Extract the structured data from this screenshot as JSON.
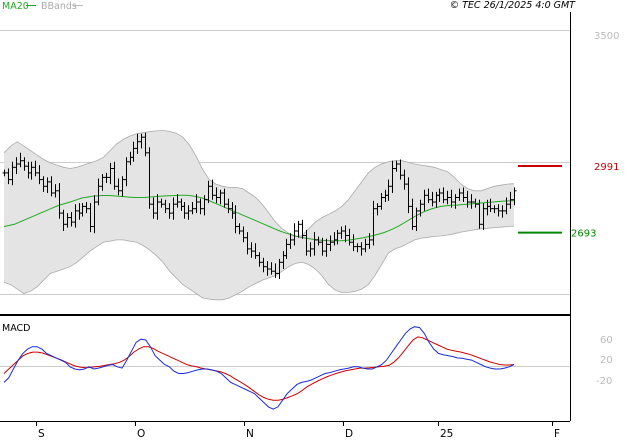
{
  "header": {
    "legend": [
      {
        "label": "MA20",
        "color": "#33aa33"
      },
      {
        "label": "BBands",
        "color": "#aaaaaa"
      }
    ],
    "copyright": "© TEC 26/1/2025 4:0 GMT"
  },
  "colors": {
    "price_bar": "#000000",
    "ma20": "#22aa22",
    "bbands_fill": "#e4e4e4",
    "bbands_line": "#aaaaaa",
    "resistance": "#cc0000",
    "support": "#008800",
    "macd": "#1a2bd6",
    "signal": "#cc0000",
    "grid": "#cccccc",
    "frame": "#000000"
  },
  "chart_data": [
    {
      "type": "ohlc",
      "yaxis_ticks": [
        "3500"
      ],
      "ylim": [
        2400,
        3600
      ],
      "levels": [
        {
          "name": "resistance",
          "label": "2991",
          "value": 2991
        },
        {
          "name": "support",
          "label": "2693",
          "value": 2693
        }
      ],
      "x_labels": [
        "S",
        "O",
        "N",
        "D",
        "25",
        "F"
      ],
      "close": [
        2960,
        2930,
        2985,
        3000,
        3015,
        2990,
        2960,
        2985,
        2960,
        2930,
        2900,
        2920,
        2870,
        2880,
        2780,
        2730,
        2760,
        2740,
        2790,
        2780,
        2810,
        2800,
        2720,
        2830,
        2900,
        2940,
        2940,
        2980,
        2900,
        2880,
        2930,
        3010,
        3030,
        3070,
        3100,
        3120,
        3050,
        2820,
        2780,
        2830,
        2820,
        2800,
        2780,
        2820,
        2830,
        2810,
        2780,
        2790,
        2800,
        2830,
        2800,
        2840,
        2900,
        2860,
        2850,
        2870,
        2820,
        2800,
        2780,
        2720,
        2700,
        2670,
        2620,
        2610,
        2590,
        2560,
        2540,
        2530,
        2520,
        2510,
        2560,
        2590,
        2640,
        2660,
        2700,
        2730,
        2680,
        2610,
        2620,
        2660,
        2650,
        2610,
        2640,
        2650,
        2660,
        2690,
        2700,
        2680,
        2650,
        2630,
        2630,
        2620,
        2640,
        2660,
        2800,
        2810,
        2850,
        2860,
        2900,
        2980,
        3000,
        2950,
        2910,
        2810,
        2720,
        2790,
        2820,
        2860,
        2840,
        2830,
        2860,
        2870,
        2840,
        2850,
        2830,
        2850,
        2870,
        2850,
        2830,
        2830,
        2820,
        2730,
        2800,
        2810,
        2800,
        2800,
        2790,
        2790,
        2820,
        2840,
        2880
      ],
      "ma20": [
        2720,
        2725,
        2730,
        2740,
        2750,
        2760,
        2770,
        2780,
        2790,
        2800,
        2810,
        2818,
        2825,
        2832,
        2840,
        2848,
        2852,
        2856,
        2858,
        2859,
        2859,
        2858,
        2856,
        2854,
        2852,
        2850,
        2850,
        2850,
        2852,
        2854,
        2856,
        2857,
        2858,
        2859,
        2860,
        2860,
        2858,
        2854,
        2848,
        2840,
        2830,
        2820,
        2810,
        2800,
        2790,
        2780,
        2770,
        2760,
        2750,
        2740,
        2730,
        2720,
        2710,
        2700,
        2692,
        2685,
        2678,
        2672,
        2668,
        2664,
        2661,
        2659,
        2657,
        2656,
        2656,
        2657,
        2659,
        2662,
        2666,
        2670,
        2675,
        2680,
        2686,
        2693,
        2702,
        2712,
        2724,
        2738,
        2752,
        2766,
        2778,
        2789,
        2798,
        2805,
        2810,
        2813,
        2815,
        2816,
        2818,
        2820,
        2822,
        2824,
        2826,
        2828,
        2830,
        2832,
        2834,
        2835,
        2836
      ],
      "bb_upper": [
        3050,
        3080,
        3100,
        3080,
        3060,
        3040,
        3020,
        3005,
        2995,
        2985,
        2980,
        2985,
        2995,
        3005,
        3015,
        3030,
        3060,
        3090,
        3110,
        3125,
        3135,
        3140,
        3145,
        3148,
        3150,
        3146,
        3138,
        3120,
        3085,
        3035,
        2975,
        2930,
        2910,
        2900,
        2895,
        2895,
        2890,
        2870,
        2850,
        2820,
        2780,
        2740,
        2710,
        2690,
        2675,
        2680,
        2710,
        2740,
        2760,
        2775,
        2790,
        2810,
        2840,
        2880,
        2920,
        2960,
        2985,
        3000,
        3010,
        3015,
        3015,
        3008,
        3000,
        2995,
        2990,
        2985,
        2975,
        2965,
        2940,
        2910,
        2890,
        2880,
        2880,
        2890,
        2900,
        2905,
        2910,
        2912
      ],
      "bb_lower": [
        2470,
        2460,
        2440,
        2420,
        2430,
        2450,
        2480,
        2510,
        2520,
        2530,
        2540,
        2560,
        2585,
        2610,
        2630,
        2650,
        2655,
        2660,
        2660,
        2655,
        2650,
        2635,
        2615,
        2590,
        2560,
        2520,
        2490,
        2460,
        2440,
        2420,
        2400,
        2395,
        2392,
        2392,
        2400,
        2415,
        2430,
        2450,
        2465,
        2480,
        2490,
        2500,
        2520,
        2540,
        2555,
        2560,
        2550,
        2530,
        2500,
        2460,
        2435,
        2425,
        2425,
        2430,
        2440,
        2460,
        2500,
        2550,
        2600,
        2620,
        2630,
        2645,
        2660,
        2668,
        2672,
        2676,
        2678,
        2682,
        2688,
        2695,
        2700,
        2705,
        2710,
        2712,
        2715,
        2717,
        2720,
        2722
      ]
    },
    {
      "type": "line",
      "title": "MACD",
      "yaxis_ticks": [
        "60",
        "20",
        "-20"
      ],
      "ylim": [
        -120,
        100
      ],
      "series": [
        {
          "key": "macd",
          "values": [
            -40,
            -30,
            -10,
            10,
            25,
            35,
            40,
            40,
            35,
            25,
            20,
            15,
            10,
            5,
            -5,
            -10,
            -12,
            -10,
            -5,
            -10,
            -8,
            -5,
            -2,
            0,
            -5,
            -8,
            10,
            30,
            50,
            57,
            55,
            40,
            20,
            10,
            0,
            -5,
            -15,
            -20,
            -20,
            -18,
            -15,
            -12,
            -10,
            -10,
            -12,
            -15,
            -20,
            -30,
            -40,
            -45,
            -50,
            -55,
            -60,
            -65,
            -75,
            -85,
            -95,
            -100,
            -95,
            -80,
            -65,
            -55,
            -45,
            -40,
            -38,
            -35,
            -30,
            -25,
            -20,
            -18,
            -15,
            -12,
            -10,
            -8,
            -5,
            -5,
            -8,
            -10,
            -10,
            -5,
            0,
            10,
            25,
            40,
            55,
            70,
            80,
            85,
            83,
            70,
            50,
            35,
            25,
            22,
            20,
            18,
            15,
            14,
            12,
            10,
            5,
            0,
            -5,
            -8,
            -10,
            -10,
            -8,
            -5,
            0
          ]
        },
        {
          "key": "signal",
          "values": [
            -20,
            -10,
            0,
            10,
            20,
            25,
            28,
            28,
            26,
            22,
            18,
            14,
            10,
            5,
            0,
            -4,
            -6,
            -7,
            -6,
            -5,
            -4,
            -2,
            0,
            2,
            5,
            10,
            18,
            28,
            35,
            40,
            40,
            36,
            30,
            25,
            20,
            15,
            10,
            5,
            0,
            -3,
            -5,
            -8,
            -10,
            -12,
            -14,
            -16,
            -20,
            -25,
            -32,
            -38,
            -45,
            -52,
            -60,
            -68,
            -74,
            -78,
            -80,
            -80,
            -78,
            -74,
            -70,
            -65,
            -58,
            -50,
            -44,
            -38,
            -33,
            -28,
            -24,
            -20,
            -17,
            -14,
            -12,
            -10,
            -8,
            -8,
            -7,
            -6,
            -5,
            -4,
            -2,
            5,
            15,
            28,
            42,
            55,
            62,
            60,
            55,
            50,
            45,
            40,
            35,
            32,
            30,
            28,
            25,
            22,
            18,
            14,
            10,
            6,
            3,
            0,
            -1,
            -1,
            0
          ]
        }
      ]
    }
  ]
}
